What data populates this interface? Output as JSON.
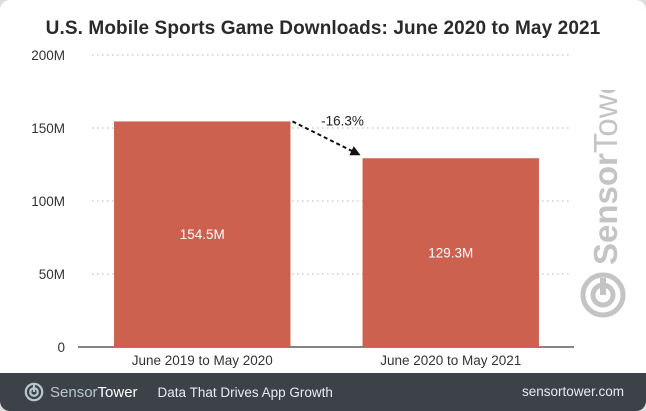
{
  "chart_data": {
    "type": "bar",
    "title": "U.S. Mobile Sports Game Downloads: June 2020 to May 2021",
    "categories": [
      "June 2019 to May 2020",
      "June 2020 to May 2021"
    ],
    "values": [
      154.5,
      129.3
    ],
    "value_labels": [
      "154.5M",
      "129.3M"
    ],
    "ylim": [
      0,
      200
    ],
    "yticks": [
      0,
      50,
      100,
      150,
      200
    ],
    "ytick_labels": [
      "0",
      "50M",
      "100M",
      "150M",
      "200M"
    ],
    "xlabel": "",
    "ylabel": "",
    "grid": true,
    "bar_color": "#cd614f",
    "annotation": {
      "text": "-16.3%",
      "from": 0,
      "to": 1
    }
  },
  "watermark": {
    "brand_a": "Sensor",
    "brand_b": "Tower"
  },
  "footer": {
    "brand_a": "Sensor",
    "brand_b": "Tower",
    "tagline": "Data That Drives App Growth",
    "site": "sensortower.com"
  },
  "colors": {
    "footer_bg": "#3d4248",
    "accent": "#cd614f"
  }
}
